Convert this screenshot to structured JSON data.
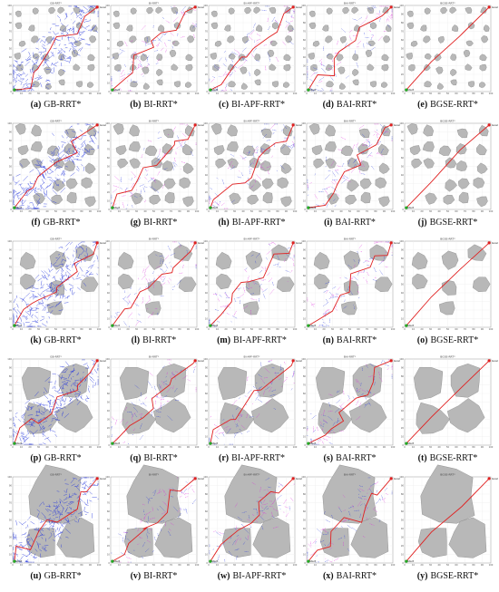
{
  "figure": {
    "axis_ticks": [
      "0",
      "10",
      "20",
      "30",
      "40",
      "50",
      "60",
      "70",
      "80",
      "90",
      "100"
    ],
    "start_label": "Start",
    "goal_label": "Goal",
    "panels": [
      {
        "label": "(a)",
        "name": "GB-RRT*",
        "title": "GB-RRT*"
      },
      {
        "label": "(b)",
        "name": "BI-RRT*",
        "title": "BI-RRT*"
      },
      {
        "label": "(c)",
        "name": "BI-APF-RRT*",
        "title": "BI-APF-RRT*"
      },
      {
        "label": "(d)",
        "name": "BAI-RRT*",
        "title": "BAI-RRT*"
      },
      {
        "label": "(e)",
        "name": "BGSE-RRT*",
        "title": "BGSE-RRT*"
      },
      {
        "label": "(f)",
        "name": "GB-RRT*",
        "title": "GB-RRT*"
      },
      {
        "label": "(g)",
        "name": "BI-RRT*",
        "title": "BI-RRT*"
      },
      {
        "label": "(h)",
        "name": "BI-APF-RRT*",
        "title": "BI-APF-RRT*"
      },
      {
        "label": "(i)",
        "name": "BAI-RRT*",
        "title": "BAI-RRT*"
      },
      {
        "label": "(j)",
        "name": "BGSE-RRT*",
        "title": "BGSE-RRT*"
      },
      {
        "label": "(k)",
        "name": "GB-RRT*",
        "title": "GB-RRT*"
      },
      {
        "label": "(l)",
        "name": "BI-RRT*",
        "title": "BI-RRT*"
      },
      {
        "label": "(m)",
        "name": "BI-APF-RRT*",
        "title": "BI-APF-RRT*"
      },
      {
        "label": "(n)",
        "name": "BAI-RRT*",
        "title": "BAI-RRT*"
      },
      {
        "label": "(o)",
        "name": "BGSE-RRT*",
        "title": "BGSE-RRT*"
      },
      {
        "label": "(p)",
        "name": "GB-RRT*",
        "title": "GB-RRT*"
      },
      {
        "label": "(q)",
        "name": "BI-RRT*",
        "title": "BI-RRT*"
      },
      {
        "label": "(r)",
        "name": "BI-APF-RRT*",
        "title": "BI-APF-RRT*"
      },
      {
        "label": "(s)",
        "name": "BAI-RRT*",
        "title": "BAI-RRT*"
      },
      {
        "label": "(t)",
        "name": "BGSE-RRT*",
        "title": "BGSE-RRT*"
      },
      {
        "label": "(u)",
        "name": "GB-RRT*",
        "title": "GB-RRT*"
      },
      {
        "label": "(v)",
        "name": "BI-RRT*",
        "title": "BI-RRT*"
      },
      {
        "label": "(w)",
        "name": "BI-APF-RRT*",
        "title": "BI-APF-RRT*"
      },
      {
        "label": "(x)",
        "name": "BAI-RRT*",
        "title": "BAI-RRT*"
      },
      {
        "label": "(y)",
        "name": "BGSE-RRT*",
        "title": "BGSE-RRT*"
      }
    ]
  }
}
